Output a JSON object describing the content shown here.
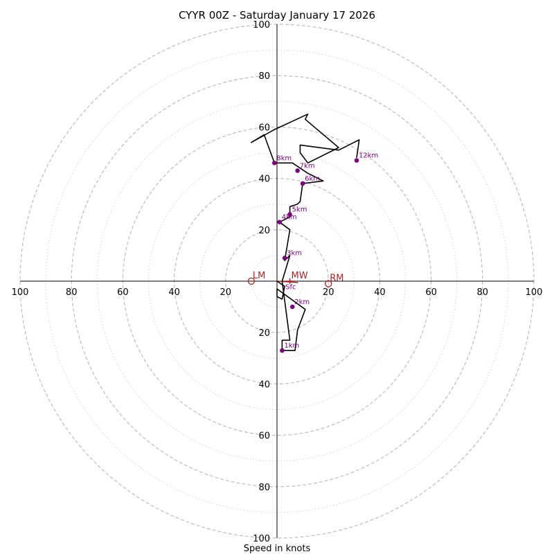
{
  "chart_data": {
    "type": "hodograph",
    "title": "CYYR 00Z - Saturday January 17 2026",
    "xlabel": "Speed in knots",
    "units": "knots",
    "range": 100,
    "rings_major": [
      20,
      40,
      60,
      80,
      100
    ],
    "rings_minor": [
      10,
      30,
      50,
      70,
      90
    ],
    "tick_labels": [
      "20",
      "40",
      "60",
      "80",
      "100"
    ],
    "trace_color": "#000000",
    "marker_color": "#800080",
    "motion_color": "#b22222",
    "trace": [
      [
        0,
        0
      ],
      [
        3,
        -2
      ],
      [
        2,
        -7
      ],
      [
        0,
        -6
      ],
      [
        0,
        -3
      ],
      [
        11,
        -11
      ],
      [
        8,
        -19
      ],
      [
        7,
        -27
      ],
      [
        2,
        -27
      ],
      [
        2,
        -23
      ],
      [
        5,
        -23
      ],
      [
        2,
        0
      ],
      [
        5,
        10
      ],
      [
        3,
        8
      ],
      [
        5,
        20
      ],
      [
        1,
        23
      ],
      [
        5,
        25
      ],
      [
        5,
        29
      ],
      [
        8,
        30
      ],
      [
        9,
        31
      ],
      [
        10,
        38
      ],
      [
        18,
        39
      ],
      [
        12,
        42
      ],
      [
        6,
        46
      ],
      [
        -1,
        46
      ],
      [
        -5,
        57
      ],
      [
        -10,
        54
      ],
      [
        -1,
        59
      ],
      [
        12,
        65
      ],
      [
        11,
        63
      ],
      [
        24,
        52
      ],
      [
        12,
        46
      ],
      [
        9,
        50
      ],
      [
        9,
        53
      ],
      [
        24,
        51
      ],
      [
        32,
        55
      ],
      [
        31,
        48
      ]
    ],
    "height_markers": [
      {
        "label": "1km",
        "u": 2,
        "v": -27
      },
      {
        "label": "2km",
        "u": 6,
        "v": -10
      },
      {
        "label": "3km",
        "u": 3,
        "v": 9
      },
      {
        "label": "4km",
        "u": 1,
        "v": 23
      },
      {
        "label": "5km",
        "u": 5,
        "v": 26
      },
      {
        "label": "6km",
        "u": 10,
        "v": 38
      },
      {
        "label": "7km",
        "u": 8,
        "v": 43
      },
      {
        "label": "8km",
        "u": -1,
        "v": 46
      },
      {
        "label": "12km",
        "u": 31,
        "v": 47
      }
    ],
    "surface_marker": {
      "label": "Sfc",
      "u": 3,
      "v": -2
    },
    "storm_motion": [
      {
        "label": "LM",
        "u": -10,
        "v": 0,
        "style": "open-circle"
      },
      {
        "label": "RM",
        "u": 20,
        "v": -1,
        "style": "open-circle"
      },
      {
        "label": "MW",
        "u": 5,
        "v": 0,
        "style": "cross"
      }
    ]
  }
}
